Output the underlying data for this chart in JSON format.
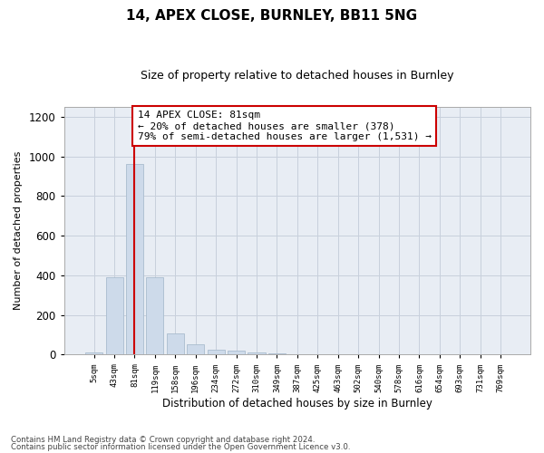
{
  "title1": "14, APEX CLOSE, BURNLEY, BB11 5NG",
  "title2": "Size of property relative to detached houses in Burnley",
  "xlabel": "Distribution of detached houses by size in Burnley",
  "ylabel": "Number of detached properties",
  "categories": [
    "5sqm",
    "43sqm",
    "81sqm",
    "119sqm",
    "158sqm",
    "196sqm",
    "234sqm",
    "272sqm",
    "310sqm",
    "349sqm",
    "387sqm",
    "425sqm",
    "463sqm",
    "502sqm",
    "540sqm",
    "578sqm",
    "616sqm",
    "654sqm",
    "693sqm",
    "731sqm",
    "769sqm"
  ],
  "values": [
    10,
    390,
    960,
    390,
    105,
    50,
    25,
    20,
    10,
    5,
    2,
    0,
    0,
    0,
    2,
    0,
    0,
    0,
    0,
    0,
    0
  ],
  "bar_color": "#cddaea",
  "bar_edge_color": "#aabcce",
  "highlight_index": 2,
  "highlight_line_color": "#cc0000",
  "ylim": [
    0,
    1250
  ],
  "yticks": [
    0,
    200,
    400,
    600,
    800,
    1000,
    1200
  ],
  "annotation_text": "14 APEX CLOSE: 81sqm\n← 20% of detached houses are smaller (378)\n79% of semi-detached houses are larger (1,531) →",
  "annotation_box_color": "#ffffff",
  "annotation_box_edge_color": "#cc0000",
  "footer1": "Contains HM Land Registry data © Crown copyright and database right 2024.",
  "footer2": "Contains public sector information licensed under the Open Government Licence v3.0.",
  "background_color": "#ffffff",
  "axes_bg_color": "#e8edf4",
  "grid_color": "#c8d0dc"
}
